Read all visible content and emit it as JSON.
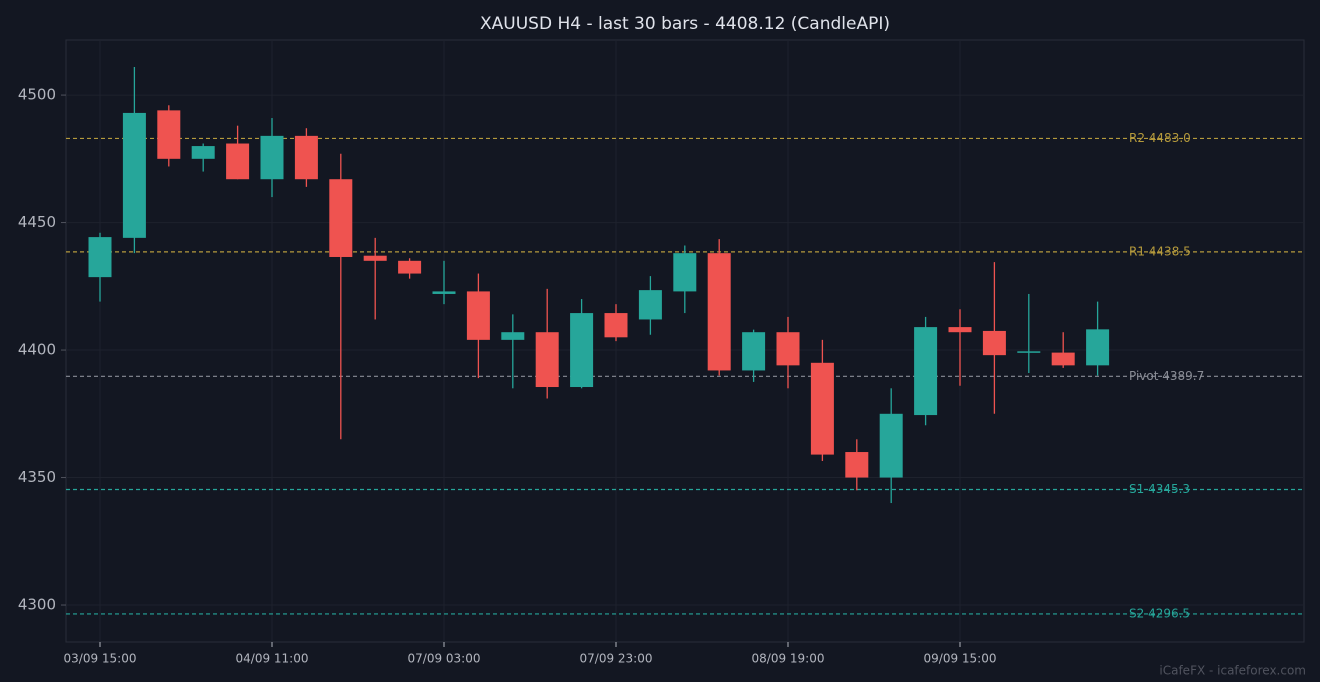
{
  "chart_data": {
    "type": "candlestick",
    "title": "XAUUSD H4 - last 30 bars - 4408.12 (CandleAPI)",
    "footer": "iCafeFX - icafeforex.com",
    "categories": [
      "03/09 15:00",
      null,
      null,
      null,
      null,
      "04/09 11:00",
      null,
      null,
      null,
      null,
      "07/09 03:00",
      null,
      null,
      null,
      null,
      "07/09 23:00",
      null,
      null,
      null,
      null,
      "08/09 19:00",
      null,
      null,
      null,
      null,
      "09/09 15:00",
      null,
      null,
      null,
      null
    ],
    "open": [
      4428.6,
      4444,
      4494,
      4475,
      4481,
      4467,
      4484,
      4467,
      4437,
      4435,
      4422,
      4423,
      4404,
      4407,
      4385.5,
      4414.5,
      4412,
      4423,
      4438,
      4392,
      4407,
      4395,
      4360,
      4350,
      4374.5,
      4409,
      4407.5,
      4399,
      4399,
      4394
    ],
    "high": [
      4446,
      4511,
      4496,
      4481,
      4488,
      4491,
      4487,
      4477,
      4444,
      4436,
      4435,
      4430,
      4414,
      4424,
      4420,
      4418,
      4429,
      4441,
      4443.5,
      4408,
      4413,
      4404,
      4365,
      4385,
      4413,
      4416,
      4434.5,
      4422,
      4407,
      4419
    ],
    "low": [
      4419,
      4438,
      4472,
      4470,
      4467,
      4460,
      4464,
      4365,
      4412,
      4428,
      4418,
      4389,
      4385,
      4381,
      4385,
      4403.5,
      4406,
      4414.5,
      4390,
      4387.5,
      4385,
      4356.5,
      4345,
      4340,
      4370.5,
      4386,
      4375,
      4391,
      4393,
      4390
    ],
    "close": [
      4444.3,
      4493,
      4475,
      4480,
      4467,
      4484,
      4467,
      4436.5,
      4435,
      4430,
      4423,
      4404,
      4407,
      4385.5,
      4414.5,
      4405,
      4423.5,
      4438,
      4392,
      4407,
      4394,
      4359,
      4350,
      4375,
      4409,
      4407,
      4398,
      4399.5,
      4394,
      4408.12
    ],
    "up_color": "#26a69a",
    "down_color": "#ef5350",
    "levels": [
      {
        "label": "R2 4483.0",
        "value": 4483.0,
        "color": "#b59a3c"
      },
      {
        "label": "R1 4438.5",
        "value": 4438.5,
        "color": "#b59a3c"
      },
      {
        "label": "Pivot 4389.7",
        "value": 4389.7,
        "color": "#8a8d96"
      },
      {
        "label": "S1 4345.3",
        "value": 4345.3,
        "color": "#26a69a"
      },
      {
        "label": "S2 4296.5",
        "value": 4296.5,
        "color": "#26a69a"
      }
    ],
    "ylim": [
      4285.5,
      4521.6
    ],
    "yticks": [
      4300,
      4350,
      4400,
      4450,
      4500
    ],
    "grid": true
  }
}
